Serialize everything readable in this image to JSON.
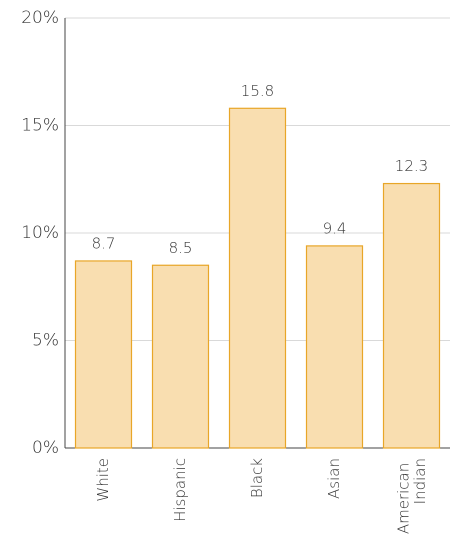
{
  "chart_data": {
    "type": "bar",
    "categories": [
      "White",
      "Hispanic",
      "Black",
      "Asian",
      "American Indian"
    ],
    "values": [
      8.7,
      8.5,
      15.8,
      9.4,
      12.3
    ],
    "color": "#f9deb0",
    "edge_color": "#e8a628",
    "ylim": [
      0,
      20
    ],
    "yticks": [
      {
        "value": 0,
        "label": "0%"
      },
      {
        "value": 5,
        "label": "5%"
      },
      {
        "value": 10,
        "label": "10%"
      },
      {
        "value": 15,
        "label": "15%"
      },
      {
        "value": 20,
        "label": "20%"
      }
    ],
    "grid": true
  }
}
